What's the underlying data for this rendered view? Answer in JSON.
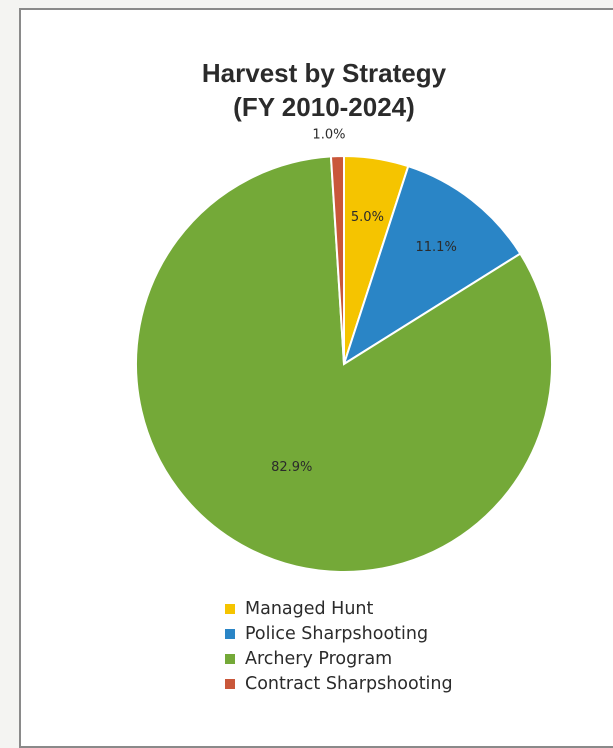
{
  "chart_data": {
    "type": "pie",
    "title_line1": "Harvest by Strategy",
    "title_line2": "(FY 2010-2024)",
    "slices": [
      {
        "label": "Managed Hunt",
        "value": 5.0,
        "display": "5.0%",
        "color": "#f5c400"
      },
      {
        "label": "Police Sharpshooting",
        "value": 11.1,
        "display": "11.1%",
        "color": "#2a85c6"
      },
      {
        "label": "Archery Program",
        "value": 82.9,
        "display": "82.9%",
        "color": "#74a938"
      },
      {
        "label": "Contract Sharpshooting",
        "value": 1.0,
        "display": "1.0%",
        "color": "#c9573a"
      }
    ],
    "legend_position": "bottom"
  }
}
